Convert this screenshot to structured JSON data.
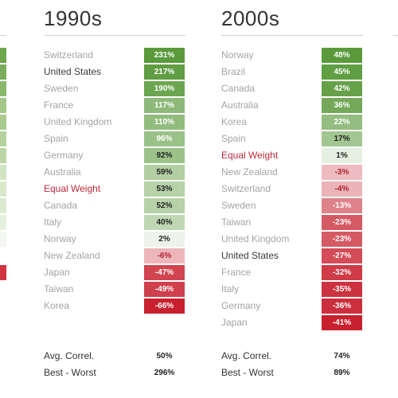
{
  "chart_data": [
    {
      "type": "table",
      "title": "1990s",
      "rows": [
        {
          "country": "Switzerland",
          "value": 231,
          "label": "231%",
          "style": "gray"
        },
        {
          "country": "United States",
          "value": 217,
          "label": "217%",
          "style": "dark"
        },
        {
          "country": "Sweden",
          "value": 190,
          "label": "190%",
          "style": "gray"
        },
        {
          "country": "France",
          "value": 117,
          "label": "117%",
          "style": "gray"
        },
        {
          "country": "United Kingdom",
          "value": 110,
          "label": "110%",
          "style": "gray"
        },
        {
          "country": "Spain",
          "value": 96,
          "label": "96%",
          "style": "gray"
        },
        {
          "country": "Germany",
          "value": 92,
          "label": "92%",
          "style": "gray"
        },
        {
          "country": "Australia",
          "value": 59,
          "label": "59%",
          "style": "gray"
        },
        {
          "country": "Equal Weight",
          "value": 53,
          "label": "53%",
          "style": "red"
        },
        {
          "country": "Canada",
          "value": 52,
          "label": "52%",
          "style": "gray"
        },
        {
          "country": "Italy",
          "value": 40,
          "label": "40%",
          "style": "gray"
        },
        {
          "country": "Norway",
          "value": 2,
          "label": "2%",
          "style": "gray"
        },
        {
          "country": "New Zealand",
          "value": -6,
          "label": "-6%",
          "style": "gray"
        },
        {
          "country": "Japan",
          "value": -47,
          "label": "-47%",
          "style": "gray"
        },
        {
          "country": "Taiwan",
          "value": -49,
          "label": "-49%",
          "style": "gray"
        },
        {
          "country": "Korea",
          "value": -66,
          "label": "-66%",
          "style": "gray"
        }
      ],
      "stats": [
        {
          "label": "Avg. Correl.",
          "value": "50%"
        },
        {
          "label": "Best - Worst",
          "value": "296%"
        }
      ]
    },
    {
      "type": "table",
      "title": "2000s",
      "rows": [
        {
          "country": "Norway",
          "value": 48,
          "label": "48%",
          "style": "gray"
        },
        {
          "country": "Brazil",
          "value": 45,
          "label": "45%",
          "style": "gray"
        },
        {
          "country": "Canada",
          "value": 42,
          "label": "42%",
          "style": "gray"
        },
        {
          "country": "Australia",
          "value": 36,
          "label": "36%",
          "style": "gray"
        },
        {
          "country": "Korea",
          "value": 22,
          "label": "22%",
          "style": "gray"
        },
        {
          "country": "Spain",
          "value": 17,
          "label": "17%",
          "style": "gray"
        },
        {
          "country": "Equal Weight",
          "value": 1,
          "label": "1%",
          "style": "red"
        },
        {
          "country": "New Zealand",
          "value": -3,
          "label": "-3%",
          "style": "gray"
        },
        {
          "country": "Switzerland",
          "value": -4,
          "label": "-4%",
          "style": "gray"
        },
        {
          "country": "Sweden",
          "value": -13,
          "label": "-13%",
          "style": "gray"
        },
        {
          "country": "Taiwan",
          "value": -23,
          "label": "-23%",
          "style": "gray"
        },
        {
          "country": "United Kingdom",
          "value": -23,
          "label": "-23%",
          "style": "gray"
        },
        {
          "country": "United States",
          "value": -27,
          "label": "-27%",
          "style": "dark"
        },
        {
          "country": "France",
          "value": -32,
          "label": "-32%",
          "style": "gray"
        },
        {
          "country": "Italy",
          "value": -35,
          "label": "-35%",
          "style": "gray"
        },
        {
          "country": "Germany",
          "value": -36,
          "label": "-36%",
          "style": "gray"
        },
        {
          "country": "Japan",
          "value": -41,
          "label": "-41%",
          "style": "gray"
        }
      ],
      "stats": [
        {
          "label": "Avg. Correl.",
          "value": "74%"
        },
        {
          "label": "Best - Worst",
          "value": "89%"
        }
      ]
    }
  ],
  "colors": {
    "positive_max": "#5a9a3c",
    "negative_max": "#c8202e",
    "neutral": "#ffffff",
    "country_gray": "#a4a4a4",
    "country_dark": "#3a3a3a",
    "country_red": "#c0283a"
  },
  "edge_cells_left": [
    "#6ea64e",
    "#79ad59",
    "#8ab86c",
    "#a2c788",
    "#a9cb90",
    "#b6d39f",
    "#bcd6a6",
    "#d2e4c2",
    "#d9e8cb",
    "#dcead0",
    "#e6f0de",
    "#f3f7ef",
    "#ffffff",
    "#d23340"
  ]
}
